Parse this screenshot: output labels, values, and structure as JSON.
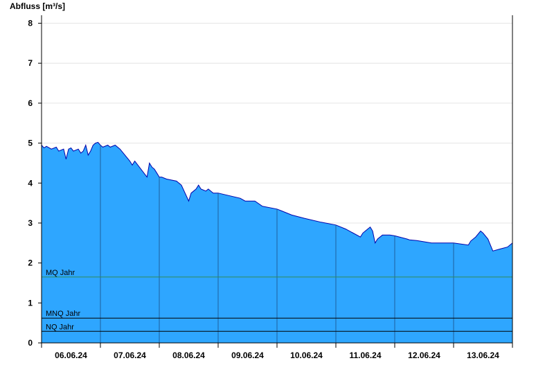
{
  "chart_data": {
    "type": "area",
    "title": "",
    "ylabel": "Abfluss [m³/s]",
    "xlabel": "",
    "ylim": [
      0,
      8.2
    ],
    "yticks": [
      "0",
      "1",
      "2",
      "3",
      "4",
      "5",
      "6",
      "7",
      "8"
    ],
    "x_start": "06.06.24 00:00",
    "x_end": "13.06.24 24:00",
    "days": [
      "06.06.24",
      "07.06.24",
      "08.06.24",
      "09.06.24",
      "10.06.24",
      "11.06.24",
      "12.06.24",
      "13.06.24"
    ],
    "grid": true,
    "colors": {
      "fill": "#2ea6ff",
      "line": "#0000aa",
      "mq": "#2e8b57",
      "mnq": "#000000",
      "nq": "#000000"
    },
    "reference_lines": [
      {
        "label": "MQ Jahr",
        "value": 1.65
      },
      {
        "label": "MNQ Jahr",
        "value": 0.62
      },
      {
        "label": "NQ Jahr",
        "value": 0.29
      }
    ],
    "series": [
      {
        "x": [
          "06.06 00:00",
          "06.06 01:00",
          "06.06 02:00",
          "06.06 04:00",
          "06.06 06:00",
          "06.06 07:00",
          "06.06 09:00",
          "06.06 10:00",
          "06.06 11:00",
          "06.06 12:00",
          "06.06 13:00",
          "06.06 15:00",
          "06.06 16:00",
          "06.06 17:00",
          "06.06 18:00",
          "06.06 19:00",
          "06.06 20:00",
          "06.06 21:00",
          "06.06 22:00",
          "06.06 23:00",
          "07.06 00:00",
          "07.06 01:00",
          "07.06 03:00",
          "07.06 04:00",
          "07.06 06:00",
          "07.06 08:00",
          "07.06 12:00",
          "07.06 13:00",
          "07.06 14:00",
          "07.06 19:00",
          "07.06 20:00",
          "07.06 21:00",
          "07.06 22:00",
          "07.06 23:00",
          "08.06 00:00",
          "08.06 01:00",
          "08.06 03:00",
          "08.06 07:00",
          "08.06 09:00",
          "08.06 12:00",
          "08.06 13:00",
          "08.06 14:00",
          "08.06 15:00",
          "08.06 16:00",
          "08.06 17:00",
          "08.06 19:00",
          "08.06 20:00",
          "08.06 22:00",
          "09.06 00:00",
          "09.06 09:00",
          "09.06 11:00",
          "09.06 15:00",
          "09.06 18:00",
          "10.06 00:00",
          "10.06 02:00",
          "10.06 06:00",
          "10.06 11:00",
          "10.06 18:00",
          "11.06 00:00",
          "11.06 04:00",
          "11.06 10:00",
          "11.06 11:00",
          "11.06 12:00",
          "11.06 13:00",
          "11.06 14:00",
          "11.06 15:00",
          "11.06 16:00",
          "11.06 17:00",
          "11.06 19:00",
          "11.06 22:00",
          "12.06 00:00",
          "12.06 05:00",
          "12.06 06:00",
          "12.06 09:00",
          "12.06 15:00",
          "13.06 00:00",
          "13.06 06:00",
          "13.06 07:00",
          "13.06 09:00",
          "13.06 11:00",
          "13.06 12:00",
          "13.06 14:00",
          "13.06 16:00",
          "13.06 19:00",
          "13.06 22:00",
          "13.06 24:00"
        ],
        "y": [
          4.95,
          4.88,
          4.92,
          4.85,
          4.9,
          4.8,
          4.85,
          4.6,
          4.85,
          4.88,
          4.8,
          4.85,
          4.75,
          4.8,
          4.95,
          4.7,
          4.8,
          4.95,
          5.0,
          5.02,
          4.95,
          4.9,
          4.95,
          4.9,
          4.95,
          4.85,
          4.55,
          4.45,
          4.55,
          4.15,
          4.5,
          4.4,
          4.35,
          4.25,
          4.15,
          4.15,
          4.1,
          4.05,
          3.95,
          3.55,
          3.75,
          3.8,
          3.85,
          3.95,
          3.85,
          3.8,
          3.85,
          3.75,
          3.75,
          3.62,
          3.55,
          3.55,
          3.42,
          3.35,
          3.3,
          3.2,
          3.12,
          3.02,
          2.95,
          2.85,
          2.65,
          2.75,
          2.8,
          2.85,
          2.9,
          2.8,
          2.5,
          2.6,
          2.7,
          2.7,
          2.68,
          2.6,
          2.58,
          2.56,
          2.5,
          2.5,
          2.45,
          2.55,
          2.65,
          2.8,
          2.75,
          2.6,
          2.3,
          2.35,
          2.4,
          2.5
        ]
      }
    ]
  }
}
